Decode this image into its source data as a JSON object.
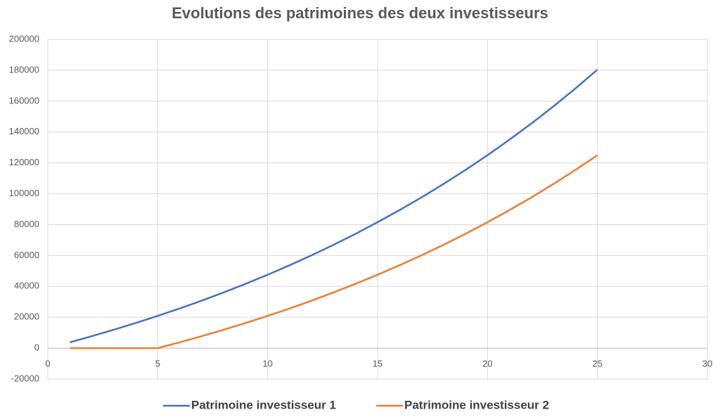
{
  "chart_data": {
    "type": "line",
    "title": "Evolutions des patrimoines des deux investisseurs",
    "x": [
      1,
      2,
      3,
      4,
      5,
      6,
      7,
      8,
      9,
      10,
      11,
      12,
      13,
      14,
      15,
      16,
      17,
      18,
      19,
      20,
      21,
      22,
      23,
      24,
      25
    ],
    "series": [
      {
        "name": "Patrimoine investisseur 1",
        "color": "#4472c4",
        "values": [
          3780,
          7749,
          11916,
          16292,
          20887,
          25711,
          30777,
          36096,
          41680,
          47545,
          53702,
          60167,
          66955,
          74083,
          81567,
          89425,
          97677,
          106340,
          115437,
          124989,
          135019,
          145550,
          156607,
          168218,
          180408
        ]
      },
      {
        "name": "Patrimoine investisseur 2",
        "color": "#ed7d31",
        "values": [
          0,
          0,
          0,
          0,
          0,
          3780,
          7749,
          11916,
          16292,
          20887,
          25711,
          30777,
          36096,
          41680,
          47545,
          53702,
          60167,
          66955,
          74083,
          81567,
          89425,
          97677,
          106340,
          115437,
          124989
        ]
      }
    ],
    "xlim": [
      0,
      30
    ],
    "xticks": [
      0,
      5,
      10,
      15,
      20,
      25,
      30
    ],
    "ylim": [
      -20000,
      200000
    ],
    "yticks": [
      -20000,
      0,
      20000,
      40000,
      60000,
      80000,
      100000,
      120000,
      140000,
      160000,
      180000,
      200000
    ],
    "grid": true,
    "legend": "bottom"
  }
}
